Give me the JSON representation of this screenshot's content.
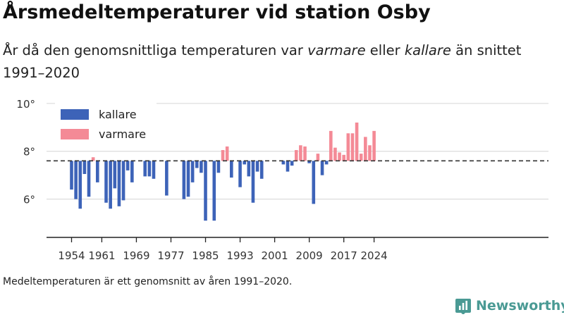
{
  "header": {
    "title": "Årsmedeltemperaturer vid station Osby",
    "subtitle_pre": "År då den genomsnittliga temperaturen var ",
    "subtitle_em1": "varmare",
    "subtitle_mid": " eller ",
    "subtitle_em2": "kallare",
    "subtitle_post": " än snittet 1991–2020"
  },
  "footnote": "Medeltemperaturen är ett genomsnitt av åren 1991–2020.",
  "brand": {
    "name": "Newsworthy",
    "color": "#4a9a94"
  },
  "chart_data": {
    "type": "bar",
    "baseline": 7.6,
    "ylim": [
      4.4,
      10.2
    ],
    "y_ticks": [
      6,
      8,
      10
    ],
    "y_tick_labels": [
      "6°",
      "8°",
      "10°"
    ],
    "x_range": [
      1950,
      2028
    ],
    "x_ticks": [
      1954,
      1961,
      1969,
      1977,
      1985,
      1993,
      2001,
      2009,
      2017,
      2024
    ],
    "x_tick_labels": [
      "1954",
      "1961",
      "1969",
      "1977",
      "1985",
      "1993",
      "2001",
      "2009",
      "2017",
      "2024"
    ],
    "grid": true,
    "legend_position": "top-left",
    "colors": {
      "kallare": "#3d63b8",
      "varmare": "#f48a96"
    },
    "legend": [
      {
        "key": "kallare",
        "label": "kallare"
      },
      {
        "key": "varmare",
        "label": "varmare"
      }
    ],
    "x": [
      1954,
      1955,
      1956,
      1957,
      1958,
      1959,
      1960,
      1962,
      1963,
      1964,
      1965,
      1966,
      1967,
      1968,
      1971,
      1972,
      1973,
      1976,
      1980,
      1981,
      1982,
      1983,
      1984,
      1985,
      1987,
      1988,
      1989,
      1990,
      1991,
      1993,
      1994,
      1995,
      1996,
      1997,
      1998,
      2003,
      2004,
      2005,
      2006,
      2007,
      2008,
      2009,
      2010,
      2011,
      2012,
      2013,
      2014,
      2015,
      2016,
      2017,
      2018,
      2019,
      2020,
      2021,
      2022,
      2023,
      2024
    ],
    "values": [
      6.4,
      6.0,
      5.6,
      7.05,
      6.1,
      7.75,
      6.7,
      5.85,
      5.6,
      6.45,
      5.7,
      5.95,
      7.2,
      6.7,
      6.95,
      6.95,
      6.85,
      6.15,
      6.0,
      6.1,
      6.7,
      7.3,
      7.1,
      5.1,
      5.1,
      7.1,
      8.05,
      8.2,
      6.9,
      6.5,
      7.45,
      6.95,
      5.85,
      7.15,
      6.85,
      7.45,
      7.15,
      7.4,
      8.05,
      8.25,
      8.2,
      7.5,
      5.8,
      7.9,
      7.0,
      7.45,
      8.85,
      8.15,
      7.95,
      7.85,
      8.75,
      8.75,
      9.2,
      7.9,
      8.6,
      8.25,
      8.85
    ]
  }
}
